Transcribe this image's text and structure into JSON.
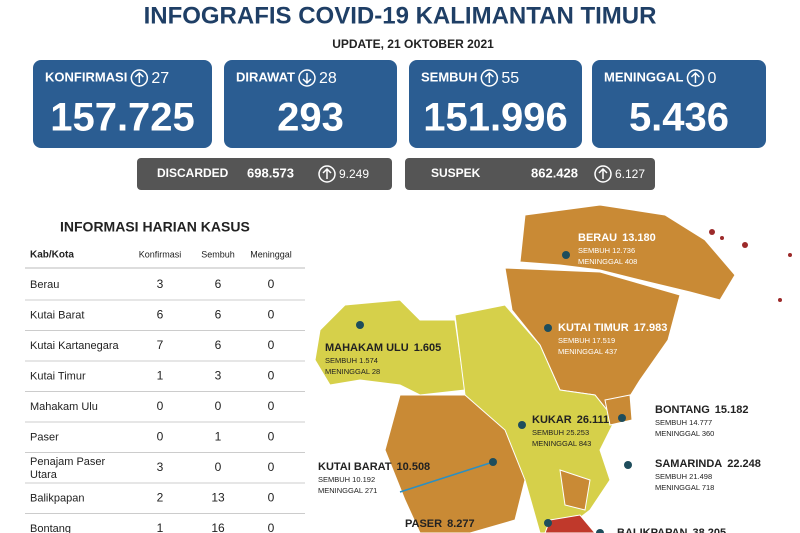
{
  "header": {
    "title": "INFOGRAFIS COVID-19 KALIMANTAN TIMUR",
    "update": "UPDATE, 21 OKTOBER 2021"
  },
  "cards": [
    {
      "label": "KONFIRMASI",
      "change": "27",
      "value": "157.725"
    },
    {
      "label": "DIRAWAT",
      "change": "28",
      "value": "293"
    },
    {
      "label": "SEMBUH",
      "change": "55",
      "value": "151.996"
    },
    {
      "label": "MENINGGAL",
      "change": "0",
      "value": "5.436"
    }
  ],
  "sub_cards": [
    {
      "label": "DISCARDED",
      "value": "698.573",
      "change": "9.249"
    },
    {
      "label": "SUSPEK",
      "value": "862.428",
      "change": "6.127"
    }
  ],
  "table": {
    "title": "INFORMASI HARIAN KASUS",
    "headers": [
      "Kab/Kota",
      "Konfirmasi",
      "Sembuh",
      "Meninggal"
    ],
    "rows": [
      [
        "Berau",
        "3",
        "6",
        "0"
      ],
      [
        "Kutai Barat",
        "6",
        "6",
        "0"
      ],
      [
        "Kutai Kartanegara",
        "7",
        "6",
        "0"
      ],
      [
        "Kutai Timur",
        "1",
        "3",
        "0"
      ],
      [
        "Mahakam Ulu",
        "0",
        "0",
        "0"
      ],
      [
        "Paser",
        "0",
        "1",
        "0"
      ],
      [
        "Penajam Paser Utara",
        "3",
        "0",
        "0"
      ],
      [
        "Balikpapan",
        "2",
        "13",
        "0"
      ],
      [
        "Bontang",
        "1",
        "16",
        "0"
      ]
    ]
  },
  "map": [
    {
      "name": "BERAU",
      "total": "13.180",
      "recovered": "SEMBUH 12.736",
      "deaths": "MENINGGAL 408"
    },
    {
      "name": "KUTAI TIMUR",
      "total": "17.983",
      "recovered": "SEMBUH 17.519",
      "deaths": "MENINGGAL 437"
    },
    {
      "name": "MAHAKAM ULU",
      "total": "1.605",
      "recovered": "SEMBUH 1.574",
      "deaths": "MENINGGAL 28"
    },
    {
      "name": "BONTANG",
      "total": "15.182",
      "recovered": "SEMBUH 14.777",
      "deaths": "MENINGGAL 360"
    },
    {
      "name": "KUKAR",
      "total": "26.111",
      "recovered": "SEMBUH 25.253",
      "deaths": "MENINGGAL 843"
    },
    {
      "name": "KUTAI BARAT",
      "total": "10.508",
      "recovered": "SEMBUH 10.192",
      "deaths": "MENINGGAL 271"
    },
    {
      "name": "SAMARINDA",
      "total": "22.248",
      "recovered": "SEMBUH 21.498",
      "deaths": "MENINGGAL 718"
    },
    {
      "name": "PASER",
      "total": "8.277"
    },
    {
      "name": "BALIKPAPAN",
      "total": "38.205"
    }
  ]
}
